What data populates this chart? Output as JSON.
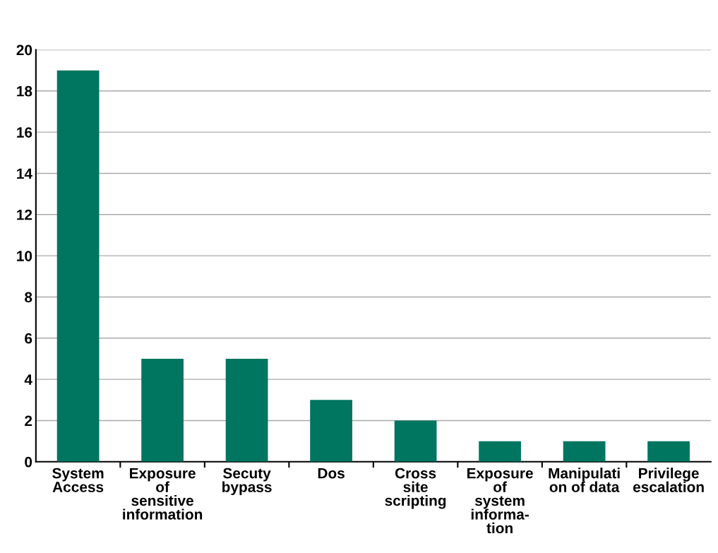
{
  "chart_data": {
    "type": "bar",
    "categories": [
      "System\nAccess",
      "Exposure\nof\nsensitive\ninformation",
      "Secuty\nbypass",
      "Dos",
      "Cross\nsite\nscripting",
      "Exposure\nof\nsystem\ninforma-\ntion",
      "Manipulati\non of data",
      "Privilege\nescalation"
    ],
    "values": [
      19,
      5,
      5,
      3,
      2,
      1,
      1,
      1
    ],
    "color": "#007560",
    "ylim": [
      0,
      20
    ],
    "yticks": [
      0,
      2,
      4,
      6,
      8,
      10,
      12,
      14,
      16,
      18,
      20
    ],
    "grid": "y",
    "legend": false
  }
}
